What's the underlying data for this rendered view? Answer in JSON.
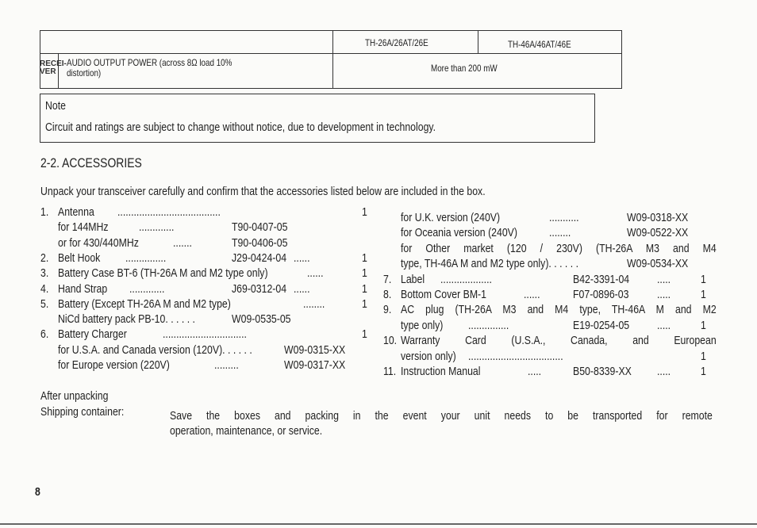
{
  "spec_table": {
    "col1": "TH-26A/26AT/26E",
    "col2": "TH-46A/46AT/46E",
    "section": "RECEI-VER",
    "section_l1": "RECEI-",
    "section_l2": "VER",
    "row_label_l1": "AUDIO OUTPUT POWER (across 8Ω load 10%",
    "row_label_l2": "distortion)",
    "row_value": "More than 200 mW"
  },
  "note": {
    "title": "Note",
    "text": "Circuit and ratings are subject to change without notice, due to development in technology."
  },
  "accessories": {
    "heading": "2-2.  ACCESSORIES",
    "intro": "Unpack your transceiver carefully and confirm that the accessories listed below are included in the box.",
    "left": [
      {
        "num": "1.",
        "label": "Antenna",
        "lead": "......................................",
        "part": "",
        "lead2": "",
        "qty": "1"
      },
      {
        "num": "",
        "label": "for 144MHz",
        "lead": ".............",
        "part": "T90-0407-05",
        "lead2": "",
        "qty": ""
      },
      {
        "num": "",
        "label": "or for 430/440MHz",
        "lead": ".......",
        "part": "T90-0406-05",
        "lead2": "",
        "qty": ""
      },
      {
        "num": "2.",
        "label": "Belt Hook",
        "lead": "...............",
        "part": "J29-0424-04",
        "lead2": "......",
        "qty": "1"
      },
      {
        "num": "3.",
        "label": "Battery Case BT-6 (TH-26A M and M2 type only)",
        "lead": "......",
        "part": "",
        "lead2": "",
        "qty": "1"
      },
      {
        "num": "4.",
        "label": "Hand Strap",
        "lead": ".............",
        "part": "J69-0312-04",
        "lead2": "......",
        "qty": "1"
      },
      {
        "num": "5.",
        "label": "Battery (Except TH-26A M and M2 type)",
        "lead": "........",
        "part": "",
        "lead2": "",
        "qty": "1"
      },
      {
        "num": "",
        "label": "NiCd battery pack PB-10. . . . . .",
        "lead": "",
        "part": "W09-0535-05",
        "lead2": "",
        "qty": ""
      },
      {
        "num": "6.",
        "label": "Battery Charger",
        "lead": "...............................",
        "part": "",
        "lead2": "",
        "qty": "1"
      },
      {
        "num": "",
        "label": "for U.S.A. and Canada version (120V). . . . . .",
        "lead": "",
        "part": "W09-0315-XX",
        "lead2": "",
        "qty": ""
      },
      {
        "num": "",
        "label": "for Europe version (220V)",
        "lead": ".........",
        "part": "W09-0317-XX",
        "lead2": "",
        "qty": ""
      }
    ],
    "right": [
      {
        "num": "",
        "label": "for U.K. version (240V)",
        "lead": "...........",
        "part": "W09-0318-XX",
        "qty": ""
      },
      {
        "num": "",
        "label": "for Oceania version (240V)",
        "lead": "........",
        "part": "W09-0522-XX",
        "qty": ""
      },
      {
        "num": "",
        "label": "for Other market (120 / 230V) (TH-26A M3 and M4",
        "justify": true,
        "part": "",
        "qty": ""
      },
      {
        "num": "",
        "label": "type, TH-46A M and M2 type only). . . . . .",
        "lead": "",
        "part": "W09-0534-XX",
        "qty": ""
      },
      {
        "num": "7.",
        "label": "Label",
        "lead": "...................",
        "part": "B42-3391-04",
        "lead2": ".....",
        "qty": "1"
      },
      {
        "num": "8.",
        "label": "Bottom Cover BM-1",
        "lead": "......",
        "part": "F07-0896-03",
        "lead2": ".....",
        "qty": "1"
      },
      {
        "num": "9.",
        "label": "AC plug (TH-26A M3 and M4 type, TH-46A M and M2",
        "justify": true,
        "part": "",
        "qty": ""
      },
      {
        "num": "",
        "label": "type only)",
        "lead": "...............",
        "part": "E19-0254-05",
        "lead2": ".....",
        "qty": "1"
      },
      {
        "num": "10.",
        "label": "Warranty Card (U.S.A., Canada, and European",
        "justify": true,
        "part": "",
        "qty": ""
      },
      {
        "num": "",
        "label": "version only)",
        "lead": "...................................",
        "part": "",
        "qty": "1"
      },
      {
        "num": "11.",
        "label": "Instruction Manual",
        "lead": ".....",
        "part": "B50-8339-XX",
        "lead2": ".....",
        "qty": "1"
      }
    ]
  },
  "after": {
    "heading": "After unpacking",
    "label": "Shipping container:",
    "text_l1": "Save the boxes and packing in the event your unit needs to be transported for remote",
    "text_l2": "operation, maintenance, or service."
  },
  "page_number": "8"
}
